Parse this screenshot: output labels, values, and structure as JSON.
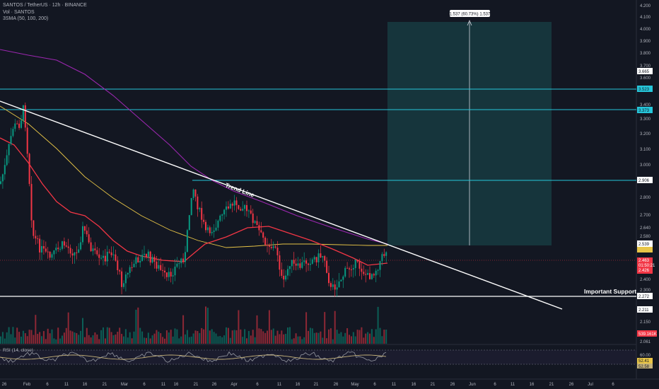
{
  "header": {
    "symbol_line": "SANTOS / TetherUS · 12h · BINANCE",
    "volume_line": "Vol · SANTOS",
    "sma_line": "3SMA (50, 100, 200)"
  },
  "rsi_legend": "RSI (14, close)",
  "price_axis": {
    "ticks": [
      "4.200",
      "4.100",
      "4.000",
      "3.900",
      "3.800",
      "3.700",
      "3.600",
      "3.500",
      "3.400",
      "3.300",
      "3.200",
      "3.100",
      "3.000",
      "2.900",
      "2.800",
      "2.700",
      "2.640",
      "2.580",
      "2.500",
      "2.400",
      "2.350",
      "2.300",
      "2.250",
      "2.200",
      "2.150",
      "2.100",
      "2.061"
    ],
    "tags": {
      "p3665": "3.665",
      "p3523": "3.523",
      "p3373": "3.373",
      "p2906": "2.906",
      "p2539": "2.539",
      "p2463": "2.463",
      "countdown": "01:50:21",
      "p2426": "2.426",
      "p2272": "2.272",
      "p2211": "2.211",
      "vol": "539.161K"
    }
  },
  "rsi_axis": {
    "ticks": [
      "60.00",
      "40.00",
      "20.00"
    ],
    "tags": [
      "52.41",
      "52.58"
    ]
  },
  "time_axis": [
    "26",
    "Feb",
    "6",
    "11",
    "16",
    "21",
    "Mar",
    "6",
    "11",
    "16",
    "21",
    "26",
    "Apr",
    "6",
    "11",
    "16",
    "21",
    "26",
    "May",
    "6",
    "11",
    "16",
    "21",
    "26",
    "Jun",
    "6",
    "11",
    "16",
    "21",
    "26",
    "Jul",
    "6"
  ],
  "annotations": {
    "measure_label": "1.537 (60.73%) 1.537",
    "trend_line": "Trend Line",
    "support": "Important Support"
  },
  "colors": {
    "background": "#131722",
    "up": "#089981",
    "down": "#f23645",
    "sma50": "#f23645",
    "sma100": "#e8c547",
    "sma200": "#9c27b0",
    "level_lines": "#26c6da",
    "target_zone": "#26a69a",
    "rsi": "#c5b27a"
  }
}
